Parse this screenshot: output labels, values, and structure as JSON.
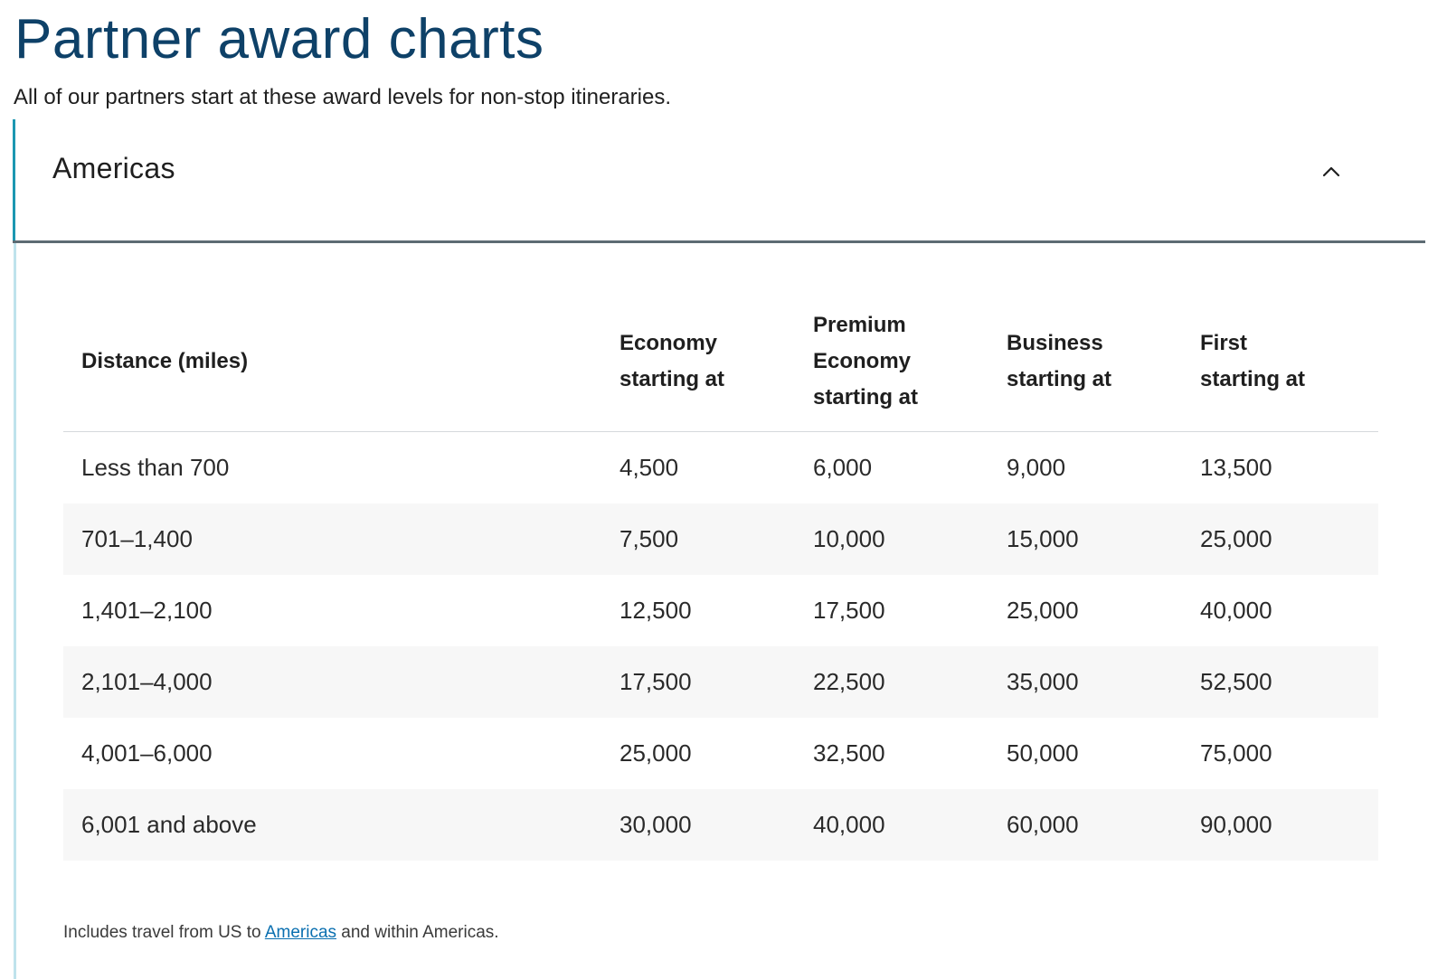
{
  "page": {
    "title": "Partner award charts",
    "subtitle": "All of our partners start at these award levels for non-stop itineraries."
  },
  "accordion": {
    "title": "Americas",
    "expanded": true,
    "icon": "chevron-up-icon",
    "accent_color": "#1c97b1"
  },
  "table": {
    "headers": {
      "distance": "Distance (miles)",
      "economy_line1": "Economy",
      "economy_line2": "starting at",
      "premium_line1": "Premium",
      "premium_line2": "Economy",
      "premium_line3": "starting at",
      "business_line1": "Business",
      "business_line2": "starting at",
      "first_line1": "First",
      "first_line2": "starting at"
    },
    "rows": [
      {
        "distance": "Less than 700",
        "economy": "4,500",
        "premium": "6,000",
        "business": "9,000",
        "first": "13,500"
      },
      {
        "distance": "701–1,400",
        "economy": "7,500",
        "premium": "10,000",
        "business": "15,000",
        "first": "25,000"
      },
      {
        "distance": "1,401–2,100",
        "economy": "12,500",
        "premium": "17,500",
        "business": "25,000",
        "first": "40,000"
      },
      {
        "distance": "2,101–4,000",
        "economy": "17,500",
        "premium": "22,500",
        "business": "35,000",
        "first": "52,500"
      },
      {
        "distance": "4,001–6,000",
        "economy": "25,000",
        "premium": "32,500",
        "business": "50,000",
        "first": "75,000"
      },
      {
        "distance": "6,001 and above",
        "economy": "30,000",
        "premium": "40,000",
        "business": "60,000",
        "first": "90,000"
      }
    ]
  },
  "footnote": {
    "prefix": "Includes travel from US to",
    "link_text": "Americas",
    "suffix": "and within Americas."
  }
}
